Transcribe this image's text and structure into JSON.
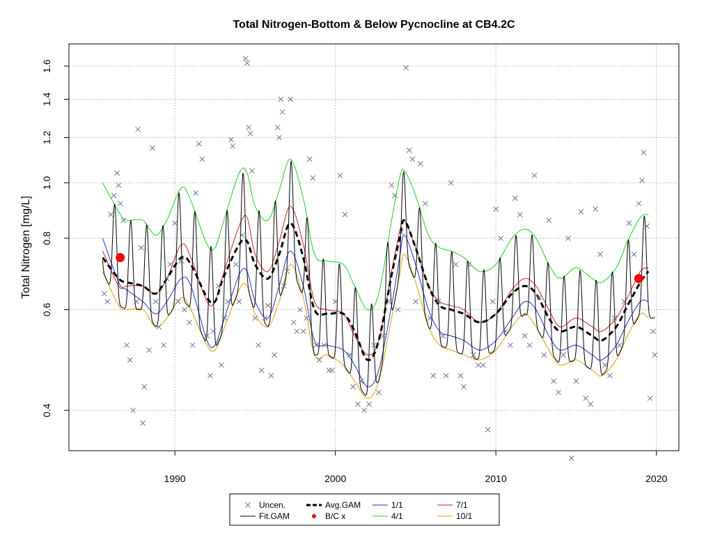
{
  "chart_data": {
    "type": "line",
    "title": "Total Nitrogen-Bottom & Below Pycnocline at CB4.2C",
    "xlabel": "",
    "ylabel": "Total Nitrogen [mg/L]",
    "y_scale": "log",
    "xlim": [
      1983.4,
      2021.4
    ],
    "ylim": [
      0.34,
      1.75
    ],
    "x_ticks": [
      1990,
      2000,
      2010,
      2020
    ],
    "y_ticks": [
      0.4,
      0.6,
      0.8,
      1.0,
      1.2,
      1.4,
      1.6
    ],
    "grid": true,
    "legend_position": "bottom",
    "legend": [
      {
        "label": "Uncen.",
        "style": "x",
        "color": "#6b7591"
      },
      {
        "label": "Avg.GAM",
        "style": "dash",
        "color": "#000000"
      },
      {
        "label": "1/1",
        "style": "line",
        "color": "#1f2fd0"
      },
      {
        "label": "7/1",
        "style": "line",
        "color": "#d02020"
      },
      {
        "label": "Fit.GAM",
        "style": "line",
        "color": "#000000"
      },
      {
        "label": "B/C x",
        "style": "dot",
        "color": "#ff0000"
      },
      {
        "label": "4/1",
        "style": "line",
        "color": "#1fd01f"
      },
      {
        "label": "10/1",
        "style": "line",
        "color": "#e0a000"
      }
    ],
    "colors": {
      "uncen": "#6b7591",
      "fit": "#000000",
      "avg": "#000000",
      "jan1": "#1f2fd0",
      "apr1": "#1fd01f",
      "jul1": "#d02020",
      "oct1": "#e0a000",
      "bc": "#ff0000",
      "grid": "#bdbdbd"
    },
    "series": [
      {
        "name": "Avg.GAM",
        "x": [
          1985.5,
          1986.5,
          1987,
          1988,
          1988.8,
          1989.5,
          1990.4,
          1991,
          1992,
          1992.5,
          1993,
          1994,
          1994.5,
          1995,
          1995.8,
          1996.5,
          1997.2,
          1998,
          1998.7,
          1999.5,
          2000.5,
          2001.2,
          2002,
          2002.7,
          2003.5,
          2004,
          2004.3,
          2005,
          2005.8,
          2006.5,
          2007.2,
          2008,
          2009,
          2010,
          2011,
          2011.8,
          2012.5,
          2013.3,
          2014,
          2015,
          2016,
          2016.6,
          2017.5,
          2018.2,
          2019,
          2019.5
        ],
        "y": [
          0.74,
          0.68,
          0.67,
          0.66,
          0.64,
          0.68,
          0.74,
          0.72,
          0.63,
          0.62,
          0.68,
          0.78,
          0.79,
          0.72,
          0.68,
          0.75,
          0.85,
          0.74,
          0.6,
          0.59,
          0.59,
          0.55,
          0.49,
          0.53,
          0.69,
          0.8,
          0.86,
          0.77,
          0.66,
          0.61,
          0.6,
          0.59,
          0.57,
          0.59,
          0.64,
          0.66,
          0.64,
          0.58,
          0.55,
          0.56,
          0.54,
          0.53,
          0.56,
          0.61,
          0.67,
          0.7
        ]
      },
      {
        "name": "1/1",
        "x": [
          1985.5,
          1986.5,
          1987,
          1988,
          1988.8,
          1989.5,
          1990.4,
          1991,
          1992,
          1992.5,
          1993,
          1994,
          1994.5,
          1995,
          1995.8,
          1996.5,
          1997.2,
          1998,
          1998.7,
          1999.5,
          2000.5,
          2001.2,
          2002,
          2002.7,
          2003.5,
          2004,
          2004.3,
          2005,
          2005.8,
          2006.5,
          2007.2,
          2008,
          2009,
          2010,
          2011,
          2011.8,
          2012.5,
          2013.3,
          2014,
          2015,
          2016,
          2016.6,
          2017.5,
          2018.2,
          2019,
          2019.5
        ],
        "y": [
          0.8,
          0.67,
          0.65,
          0.62,
          0.59,
          0.62,
          0.68,
          0.66,
          0.53,
          0.52,
          0.57,
          0.69,
          0.7,
          0.62,
          0.58,
          0.66,
          0.76,
          0.66,
          0.53,
          0.52,
          0.51,
          0.48,
          0.44,
          0.47,
          0.61,
          0.74,
          0.81,
          0.72,
          0.6,
          0.55,
          0.54,
          0.53,
          0.51,
          0.53,
          0.58,
          0.62,
          0.6,
          0.54,
          0.51,
          0.52,
          0.5,
          0.49,
          0.52,
          0.57,
          0.62,
          0.62
        ]
      },
      {
        "name": "4/1",
        "x": [
          1985.5,
          1986.5,
          1987,
          1988,
          1988.8,
          1989.5,
          1990.4,
          1991,
          1992,
          1992.5,
          1993,
          1994,
          1994.5,
          1995,
          1995.8,
          1996.5,
          1997.2,
          1998,
          1998.7,
          1999.5,
          2000.5,
          2001.2,
          2002,
          2002.7,
          2003.5,
          2004,
          2004.3,
          2005,
          2005.8,
          2006.5,
          2007.2,
          2008,
          2009,
          2010,
          2011,
          2011.8,
          2012.5,
          2013.3,
          2014,
          2015,
          2016,
          2016.6,
          2017.5,
          2018.2,
          2019,
          2019.5
        ],
        "y": [
          1.0,
          0.89,
          0.86,
          0.86,
          0.81,
          0.86,
          0.98,
          0.93,
          0.78,
          0.77,
          0.85,
          1.04,
          1.04,
          0.91,
          0.86,
          0.97,
          1.1,
          0.94,
          0.75,
          0.73,
          0.72,
          0.66,
          0.6,
          0.64,
          0.86,
          1.02,
          1.05,
          0.95,
          0.81,
          0.77,
          0.76,
          0.74,
          0.7,
          0.72,
          0.8,
          0.83,
          0.8,
          0.72,
          0.68,
          0.71,
          0.68,
          0.67,
          0.71,
          0.79,
          0.87,
          0.88
        ]
      },
      {
        "name": "7/1",
        "x": [
          1985.5,
          1986.5,
          1987,
          1988,
          1988.8,
          1989.5,
          1990.4,
          1991,
          1992,
          1992.5,
          1993,
          1994,
          1994.5,
          1995,
          1995.8,
          1996.5,
          1997.2,
          1998,
          1998.7,
          1999.5,
          2000.5,
          2001.2,
          2002,
          2002.7,
          2003.5,
          2004,
          2004.3,
          2005,
          2005.8,
          2006.5,
          2007.2,
          2008,
          2009,
          2010,
          2011,
          2011.8,
          2012.5,
          2013.3,
          2014,
          2015,
          2016,
          2016.6,
          2017.5,
          2018.2,
          2019,
          2019.5
        ],
        "y": [
          0.76,
          0.66,
          0.66,
          0.66,
          0.64,
          0.68,
          0.78,
          0.74,
          0.62,
          0.62,
          0.69,
          0.84,
          0.87,
          0.75,
          0.7,
          0.79,
          0.91,
          0.78,
          0.62,
          0.6,
          0.59,
          0.54,
          0.5,
          0.53,
          0.7,
          0.82,
          0.86,
          0.77,
          0.66,
          0.62,
          0.61,
          0.6,
          0.57,
          0.59,
          0.65,
          0.68,
          0.66,
          0.6,
          0.56,
          0.58,
          0.56,
          0.55,
          0.58,
          0.63,
          0.7,
          0.71
        ]
      },
      {
        "name": "10/1",
        "x": [
          1985.5,
          1986.5,
          1987,
          1988,
          1988.8,
          1989.5,
          1990.4,
          1991,
          1992,
          1992.5,
          1993,
          1994,
          1994.5,
          1995,
          1995.8,
          1996.5,
          1997.2,
          1998,
          1998.7,
          1999.5,
          2000.5,
          2001.2,
          2002,
          2002.7,
          2003.5,
          2004,
          2004.3,
          2005,
          2005.8,
          2006.5,
          2007.2,
          2008,
          2009,
          2010,
          2011,
          2011.8,
          2012.5,
          2013.3,
          2014,
          2015,
          2016,
          2016.6,
          2017.5,
          2018.2,
          2019,
          2019.5
        ],
        "y": [
          0.7,
          0.61,
          0.6,
          0.6,
          0.56,
          0.58,
          0.63,
          0.6,
          0.52,
          0.51,
          0.55,
          0.65,
          0.66,
          0.59,
          0.56,
          0.62,
          0.72,
          0.63,
          0.5,
          0.5,
          0.48,
          0.45,
          0.42,
          0.45,
          0.58,
          0.69,
          0.75,
          0.67,
          0.56,
          0.52,
          0.51,
          0.5,
          0.49,
          0.51,
          0.56,
          0.59,
          0.56,
          0.51,
          0.48,
          0.49,
          0.47,
          0.46,
          0.49,
          0.54,
          0.59,
          0.58
        ]
      }
    ],
    "fit_gam": {
      "name": "Fit.GAM",
      "description": "seasonal oscillation between the 10/1 (min) and 4/1 (max) curves, one cycle per year",
      "x_start": 1985.5,
      "x_end": 2019.9,
      "peak_phase": 0.25
    },
    "bc_points": [
      {
        "x": 1986.6,
        "y": 0.74
      },
      {
        "x": 2018.9,
        "y": 0.68
      }
    ],
    "uncen_points": [
      [
        1985.6,
        0.64
      ],
      [
        1985.8,
        0.62
      ],
      [
        1986.0,
        0.88
      ],
      [
        1986.2,
        0.95
      ],
      [
        1986.4,
        1.04
      ],
      [
        1986.5,
        0.99
      ],
      [
        1986.6,
        0.92
      ],
      [
        1986.8,
        0.86
      ],
      [
        1987.0,
        0.52
      ],
      [
        1987.2,
        0.49
      ],
      [
        1987.4,
        0.4
      ],
      [
        1987.6,
        0.62
      ],
      [
        1987.7,
        1.24
      ],
      [
        1987.9,
        0.77
      ],
      [
        1988.0,
        0.38
      ],
      [
        1988.1,
        0.44
      ],
      [
        1988.4,
        0.51
      ],
      [
        1988.6,
        1.15
      ],
      [
        1988.8,
        0.62
      ],
      [
        1989.0,
        0.56
      ],
      [
        1989.3,
        0.52
      ],
      [
        1989.5,
        0.68
      ],
      [
        1989.7,
        0.72
      ],
      [
        1990.0,
        0.85
      ],
      [
        1990.2,
        0.62
      ],
      [
        1990.4,
        0.73
      ],
      [
        1990.6,
        0.6
      ],
      [
        1990.9,
        0.57
      ],
      [
        1991.1,
        0.52
      ],
      [
        1991.3,
        0.96
      ],
      [
        1991.5,
        1.17
      ],
      [
        1991.7,
        1.1
      ],
      [
        1992.0,
        0.54
      ],
      [
        1992.2,
        0.46
      ],
      [
        1992.4,
        0.55
      ],
      [
        1992.7,
        0.66
      ],
      [
        1992.9,
        0.48
      ],
      [
        1993.1,
        0.58
      ],
      [
        1993.3,
        0.62
      ],
      [
        1993.5,
        1.19
      ],
      [
        1993.6,
        1.16
      ],
      [
        1993.8,
        0.72
      ],
      [
        1994.0,
        0.62
      ],
      [
        1994.2,
        0.81
      ],
      [
        1994.4,
        1.65
      ],
      [
        1994.5,
        1.62
      ],
      [
        1994.6,
        1.25
      ],
      [
        1994.7,
        1.22
      ],
      [
        1994.8,
        1.05
      ],
      [
        1995.0,
        0.58
      ],
      [
        1995.2,
        0.52
      ],
      [
        1995.4,
        0.47
      ],
      [
        1995.6,
        0.58
      ],
      [
        1995.8,
        0.61
      ],
      [
        1996.0,
        0.46
      ],
      [
        1996.2,
        0.5
      ],
      [
        1996.4,
        1.25
      ],
      [
        1996.5,
        1.2
      ],
      [
        1996.6,
        1.4
      ],
      [
        1996.7,
        1.33
      ],
      [
        1996.8,
        0.66
      ],
      [
        1997.0,
        0.7
      ],
      [
        1997.2,
        1.4
      ],
      [
        1997.4,
        0.57
      ],
      [
        1997.6,
        0.55
      ],
      [
        1997.8,
        0.6
      ],
      [
        1998.0,
        0.55
      ],
      [
        1998.2,
        0.58
      ],
      [
        1998.4,
        1.1
      ],
      [
        1998.6,
        1.02
      ],
      [
        1998.8,
        0.52
      ],
      [
        1999.0,
        0.49
      ],
      [
        1999.3,
        0.52
      ],
      [
        1999.6,
        0.47
      ],
      [
        1999.8,
        0.47
      ],
      [
        2000.0,
        0.62
      ],
      [
        2000.3,
        1.03
      ],
      [
        2000.6,
        0.88
      ],
      [
        2000.9,
        0.5
      ],
      [
        2001.1,
        0.44
      ],
      [
        2001.4,
        0.41
      ],
      [
        2001.6,
        0.45
      ],
      [
        2001.8,
        0.4
      ],
      [
        2002.1,
        0.41
      ],
      [
        2002.4,
        0.52
      ],
      [
        2002.7,
        0.43
      ],
      [
        2003.0,
        0.54
      ],
      [
        2003.3,
        0.62
      ],
      [
        2003.5,
        0.99
      ],
      [
        2003.7,
        0.95
      ],
      [
        2003.9,
        0.6
      ],
      [
        2004.1,
        0.82
      ],
      [
        2004.4,
        1.59
      ],
      [
        2004.6,
        1.14
      ],
      [
        2004.8,
        1.1
      ],
      [
        2005.0,
        0.62
      ],
      [
        2005.3,
        1.08
      ],
      [
        2005.6,
        0.92
      ],
      [
        2005.9,
        0.58
      ],
      [
        2006.1,
        0.46
      ],
      [
        2006.4,
        0.62
      ],
      [
        2006.7,
        0.54
      ],
      [
        2006.9,
        0.46
      ],
      [
        2007.2,
        1.0
      ],
      [
        2007.5,
        0.72
      ],
      [
        2007.8,
        0.46
      ],
      [
        2008.0,
        0.44
      ],
      [
        2008.3,
        0.72
      ],
      [
        2008.6,
        0.5
      ],
      [
        2008.9,
        0.48
      ],
      [
        2009.2,
        0.48
      ],
      [
        2009.5,
        0.37
      ],
      [
        2009.8,
        0.62
      ],
      [
        2010.0,
        0.9
      ],
      [
        2010.3,
        0.8
      ],
      [
        2010.6,
        0.55
      ],
      [
        2010.9,
        0.52
      ],
      [
        2011.2,
        0.94
      ],
      [
        2011.5,
        0.88
      ],
      [
        2011.8,
        0.54
      ],
      [
        2012.1,
        0.52
      ],
      [
        2012.4,
        1.03
      ],
      [
        2012.7,
        0.63
      ],
      [
        2013.0,
        0.5
      ],
      [
        2013.3,
        0.86
      ],
      [
        2013.6,
        0.45
      ],
      [
        2013.9,
        0.43
      ],
      [
        2014.2,
        0.5
      ],
      [
        2014.5,
        0.8
      ],
      [
        2014.7,
        0.33
      ],
      [
        2015.0,
        0.45
      ],
      [
        2015.3,
        0.89
      ],
      [
        2015.6,
        0.42
      ],
      [
        2015.9,
        0.41
      ],
      [
        2016.2,
        0.9
      ],
      [
        2016.5,
        0.75
      ],
      [
        2016.8,
        0.48
      ],
      [
        2017.1,
        0.46
      ],
      [
        2017.4,
        0.58
      ],
      [
        2017.7,
        0.52
      ],
      [
        2018.0,
        0.62
      ],
      [
        2018.3,
        0.85
      ],
      [
        2018.6,
        0.75
      ],
      [
        2018.9,
        0.92
      ],
      [
        2019.1,
        1.01
      ],
      [
        2019.2,
        1.13
      ],
      [
        2019.4,
        0.84
      ],
      [
        2019.6,
        0.42
      ],
      [
        2019.8,
        0.55
      ],
      [
        2019.9,
        0.5
      ]
    ]
  }
}
